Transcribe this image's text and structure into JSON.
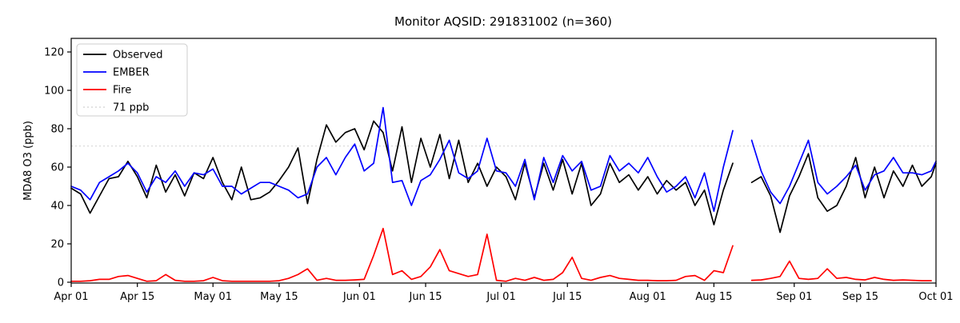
{
  "title": "Monitor AQSID: 291831002 (n=360)",
  "axes": {
    "ylabel": "MDA8 O3 (ppb)",
    "yticks": [
      0,
      20,
      40,
      60,
      80,
      100,
      120
    ],
    "xticks": [
      {
        "day": 0,
        "label": "Apr 01"
      },
      {
        "day": 14,
        "label": "Apr 15"
      },
      {
        "day": 30,
        "label": "May 01"
      },
      {
        "day": 44,
        "label": "May 15"
      },
      {
        "day": 61,
        "label": "Jun 01"
      },
      {
        "day": 75,
        "label": "Jun 15"
      },
      {
        "day": 91,
        "label": "Jul 01"
      },
      {
        "day": 105,
        "label": "Jul 15"
      },
      {
        "day": 122,
        "label": "Aug 01"
      },
      {
        "day": 136,
        "label": "Aug 15"
      },
      {
        "day": 153,
        "label": "Sep 01"
      },
      {
        "day": 167,
        "label": "Sep 15"
      },
      {
        "day": 183,
        "label": "Oct 01"
      }
    ]
  },
  "legend": {
    "entries": [
      {
        "label": "Observed",
        "color": "#000000",
        "style": "solid"
      },
      {
        "label": "EMBER",
        "color": "#0000ff",
        "style": "solid"
      },
      {
        "label": "Fire",
        "color": "#ff0000",
        "style": "solid"
      },
      {
        "label": "71 ppb",
        "color": "#d9d9d9",
        "style": "dotted"
      }
    ]
  },
  "chart_data": {
    "type": "line",
    "title": "Monitor AQSID: 291831002 (n=360)",
    "xlabel": "",
    "ylabel": "MDA8 O3 (ppb)",
    "x_axis": "dates Apr 01 to Oct 01, day offsets from Apr 01",
    "x_range_days": 183,
    "ylim": [
      -1.25,
      127
    ],
    "grid": false,
    "legend_position": "upper left",
    "reference_line": {
      "label": "71 ppb",
      "value": 71,
      "style": "dotted",
      "color": "#d9d9d9"
    },
    "gap_note": "all series have missing data around day 142 (Aug 21)",
    "x_days": [
      0,
      2,
      4,
      6,
      8,
      10,
      12,
      14,
      16,
      18,
      20,
      22,
      24,
      26,
      28,
      30,
      32,
      34,
      36,
      38,
      40,
      42,
      44,
      46,
      48,
      50,
      52,
      54,
      56,
      58,
      60,
      62,
      64,
      66,
      68,
      70,
      72,
      74,
      76,
      78,
      80,
      82,
      84,
      86,
      88,
      90,
      92,
      94,
      96,
      98,
      100,
      102,
      104,
      106,
      108,
      110,
      112,
      114,
      116,
      118,
      120,
      122,
      124,
      126,
      128,
      130,
      132,
      134,
      136,
      138,
      140,
      142,
      144,
      146,
      148,
      150,
      152,
      154,
      156,
      158,
      160,
      162,
      164,
      166,
      168,
      170,
      172,
      174,
      176,
      178,
      180,
      182,
      183
    ],
    "series": [
      {
        "name": "Observed",
        "color": "#000000",
        "values": [
          49,
          46,
          36,
          45,
          54,
          55,
          63,
          55,
          44,
          61,
          47,
          56,
          45,
          57,
          54,
          65,
          52,
          43,
          60,
          43,
          44,
          47,
          53,
          60,
          70,
          41,
          64,
          82,
          73,
          78,
          80,
          69,
          84,
          78,
          58,
          81,
          52,
          75,
          60,
          77,
          54,
          74,
          52,
          62,
          50,
          60,
          55,
          43,
          62,
          44,
          62,
          48,
          64,
          46,
          62,
          40,
          46,
          62,
          52,
          56,
          48,
          55,
          46,
          53,
          48,
          52,
          40,
          48,
          30,
          48,
          62,
          null,
          52,
          55,
          45,
          26,
          45,
          55,
          67,
          44,
          37,
          40,
          50,
          65,
          44,
          60,
          44,
          58,
          50,
          61,
          50,
          55,
          62
        ]
      },
      {
        "name": "EMBER",
        "color": "#0000ff",
        "values": [
          50,
          48,
          43,
          52,
          55,
          58,
          62,
          57,
          47,
          55,
          52,
          58,
          50,
          57,
          56,
          59,
          50,
          50,
          46,
          49,
          52,
          52,
          50,
          48,
          44,
          46,
          60,
          65,
          56,
          65,
          72,
          58,
          62,
          91,
          52,
          53,
          40,
          53,
          56,
          64,
          74,
          57,
          54,
          58,
          75,
          58,
          57,
          50,
          64,
          43,
          65,
          52,
          66,
          58,
          63,
          48,
          50,
          66,
          58,
          62,
          57,
          65,
          55,
          47,
          50,
          55,
          44,
          57,
          37,
          60,
          79,
          null,
          74,
          58,
          47,
          41,
          50,
          62,
          74,
          52,
          46,
          50,
          55,
          61,
          48,
          56,
          58,
          65,
          57,
          57,
          56,
          58,
          63
        ]
      },
      {
        "name": "Fire",
        "color": "#ff0000",
        "values": [
          0.5,
          0.5,
          0.8,
          1.5,
          1.5,
          3,
          3.5,
          2,
          0.5,
          0.8,
          4,
          1,
          0.5,
          0.5,
          0.8,
          2.5,
          0.8,
          0.5,
          0.5,
          0.5,
          0.5,
          0.5,
          0.8,
          2,
          4,
          7,
          1,
          2,
          1,
          1,
          1.2,
          1.5,
          14,
          28,
          4,
          6,
          1.5,
          3,
          8,
          17,
          6,
          4.5,
          3,
          4,
          25,
          1,
          0.5,
          2,
          1,
          2.5,
          1,
          1.5,
          5,
          13,
          2,
          1,
          2.5,
          3.5,
          2,
          1.5,
          1,
          1,
          0.8,
          0.8,
          1,
          3,
          3.5,
          1,
          6,
          5,
          19,
          null,
          1,
          1.2,
          2,
          3,
          11,
          2,
          1.5,
          2,
          7,
          2,
          2.5,
          1.5,
          1.2,
          2.5,
          1.5,
          1,
          1.2,
          1,
          0.8,
          0.8,
          null
        ]
      }
    ]
  }
}
